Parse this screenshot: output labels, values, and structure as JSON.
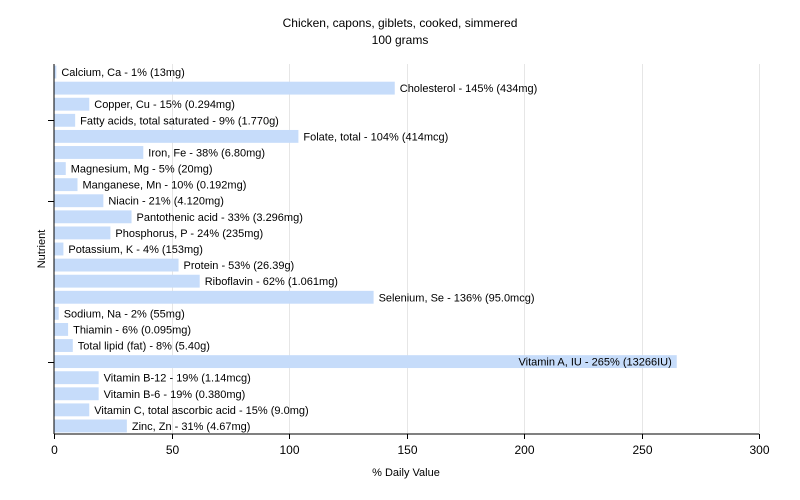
{
  "chart_data": {
    "type": "bar",
    "orientation": "horizontal",
    "title": "Chicken, capons, giblets, cooked, simmered",
    "subtitle": "100 grams",
    "xlabel": "% Daily Value",
    "ylabel": "Nutrient",
    "xlim": [
      0,
      300
    ],
    "xticks": [
      0,
      50,
      100,
      150,
      200,
      250,
      300
    ],
    "grid": true,
    "bar_color": "#c6dcfa",
    "categories": [
      "Calcium, Ca",
      "Cholesterol",
      "Copper, Cu",
      "Fatty acids, total saturated",
      "Folate, total",
      "Iron, Fe",
      "Magnesium, Mg",
      "Manganese, Mn",
      "Niacin",
      "Pantothenic acid",
      "Phosphorus, P",
      "Potassium, K",
      "Protein",
      "Riboflavin",
      "Selenium, Se",
      "Sodium, Na",
      "Thiamin",
      "Total lipid (fat)",
      "Vitamin A, IU",
      "Vitamin B-12",
      "Vitamin B-6",
      "Vitamin C, total ascorbic acid",
      "Zinc, Zn"
    ],
    "values": [
      1,
      145,
      15,
      9,
      104,
      38,
      5,
      10,
      21,
      33,
      24,
      4,
      53,
      62,
      136,
      2,
      6,
      8,
      265,
      19,
      19,
      15,
      31
    ],
    "labels": [
      "Calcium, Ca - 1% (13mg)",
      "Cholesterol - 145% (434mg)",
      "Copper, Cu - 15% (0.294mg)",
      "Fatty acids, total saturated - 9% (1.770g)",
      "Folate, total - 104% (414mcg)",
      "Iron, Fe - 38% (6.80mg)",
      "Magnesium, Mg - 5% (20mg)",
      "Manganese, Mn - 10% (0.192mg)",
      "Niacin - 21% (4.120mg)",
      "Pantothenic acid - 33% (3.296mg)",
      "Phosphorus, P - 24% (235mg)",
      "Potassium, K - 4% (153mg)",
      "Protein - 53% (26.39g)",
      "Riboflavin - 62% (1.061mg)",
      "Selenium, Se - 136% (95.0mcg)",
      "Sodium, Na - 2% (55mg)",
      "Thiamin - 6% (0.095mg)",
      "Total lipid (fat) - 8% (5.40g)",
      "Vitamin A, IU - 265% (13266IU)",
      "Vitamin B-12 - 19% (1.14mcg)",
      "Vitamin B-6 - 19% (0.380mg)",
      "Vitamin C, total ascorbic acid - 15% (9.0mg)",
      "Zinc, Zn - 31% (4.67mg)"
    ]
  }
}
